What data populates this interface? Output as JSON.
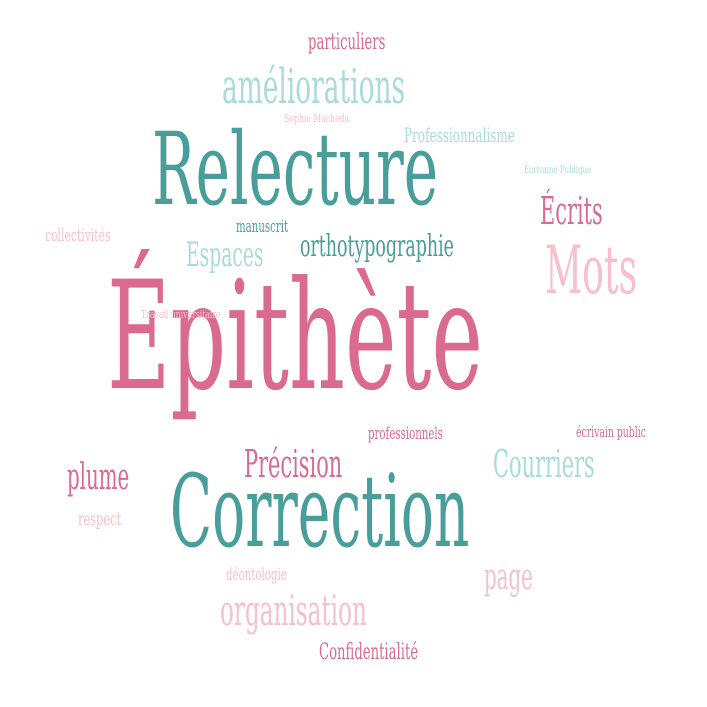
{
  "word_cloud": {
    "colors": {
      "teal": "#4a9e9a",
      "teal_light": "#a9dbdb",
      "pink": "#da6a8e",
      "pink_light": "#f7c0ca"
    },
    "words": [
      {
        "text": "Épithète",
        "color": "pink",
        "rank": 1
      },
      {
        "text": "Relecture",
        "color": "teal",
        "rank": 2
      },
      {
        "text": "Correction",
        "color": "teal",
        "rank": 2
      },
      {
        "text": "améliorations",
        "color": "teal_light",
        "rank": 3
      },
      {
        "text": "Mots",
        "color": "pink_light",
        "rank": 3
      },
      {
        "text": "Écrits",
        "color": "pink",
        "rank": 4
      },
      {
        "text": "orthotypographie",
        "color": "teal",
        "rank": 4
      },
      {
        "text": "Espaces",
        "color": "teal_light",
        "rank": 4
      },
      {
        "text": "Précision",
        "color": "pink",
        "rank": 4
      },
      {
        "text": "Courriers",
        "color": "teal_light",
        "rank": 4
      },
      {
        "text": "plume",
        "color": "pink",
        "rank": 4
      },
      {
        "text": "organisation",
        "color": "pink_light",
        "rank": 4
      },
      {
        "text": "page",
        "color": "pink_light",
        "rank": 4
      },
      {
        "text": "particuliers",
        "color": "pink",
        "rank": 5
      },
      {
        "text": "Professionnalisme",
        "color": "teal_light",
        "rank": 5
      },
      {
        "text": "Confidentialité",
        "color": "pink",
        "rank": 5
      },
      {
        "text": "collectivités",
        "color": "pink_light",
        "rank": 5
      },
      {
        "text": "manuscrit",
        "color": "teal",
        "rank": 5
      },
      {
        "text": "respect",
        "color": "pink_light",
        "rank": 5
      },
      {
        "text": "professionnels",
        "color": "pink",
        "rank": 5
      },
      {
        "text": "déontologie",
        "color": "pink_light",
        "rank": 5
      },
      {
        "text": "écrivain public",
        "color": "pink",
        "rank": 5
      },
      {
        "text": "Sophie Macheda",
        "color": "pink_light",
        "rank": 6
      },
      {
        "text": "Écrivaine Publique",
        "color": "teal_light",
        "rank": 6
      },
      {
        "text": "Travail universitaire",
        "color": "pink_light",
        "rank": 6
      }
    ]
  }
}
